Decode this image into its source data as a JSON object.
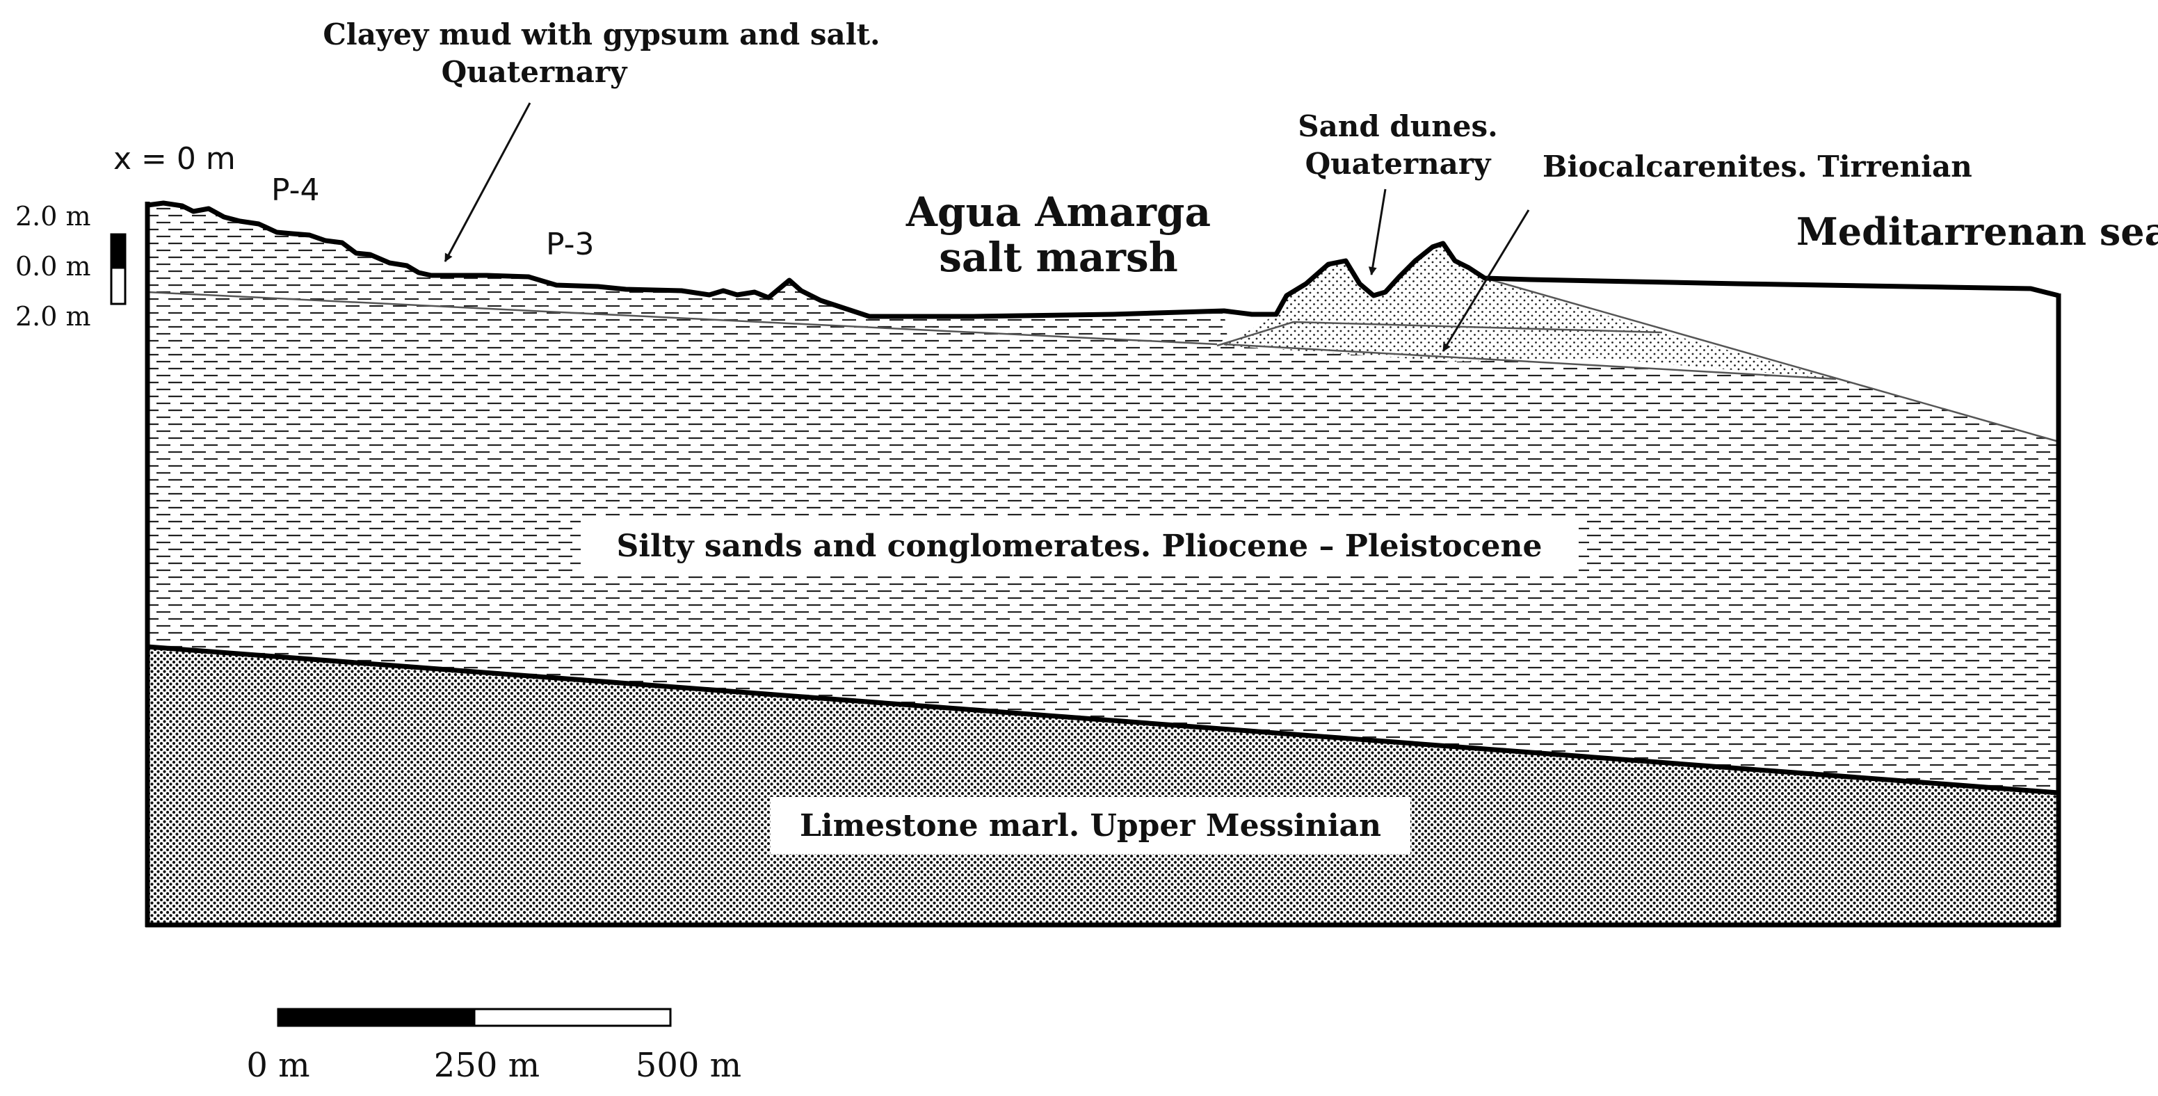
{
  "labels": {
    "clayey_mud": [
      "Clayey mud with gypsum and salt.",
      "Quaternary"
    ],
    "x_origin": "x = 0 m",
    "p4": "P-4",
    "p3": "P-3",
    "salt_marsh": [
      "Agua Amarga",
      "salt marsh"
    ],
    "sand_dunes": [
      "Sand dunes.",
      "Quaternary"
    ],
    "biocalcarenites": "Biocalcarenites. Tirrenian",
    "sea": "Meditarrenan sea",
    "silty_sands": "Silty sands and conglomerates.  Pliocene  –  Pleistocene",
    "limestone": "Limestone marl. Upper Messinian"
  },
  "vertical_scale": {
    "top": "2.0 m",
    "middle": "0.0 m",
    "bottom": "2.0 m"
  },
  "horizontal_scale": {
    "labels": [
      "0 m",
      "250 m",
      "500 m"
    ]
  }
}
